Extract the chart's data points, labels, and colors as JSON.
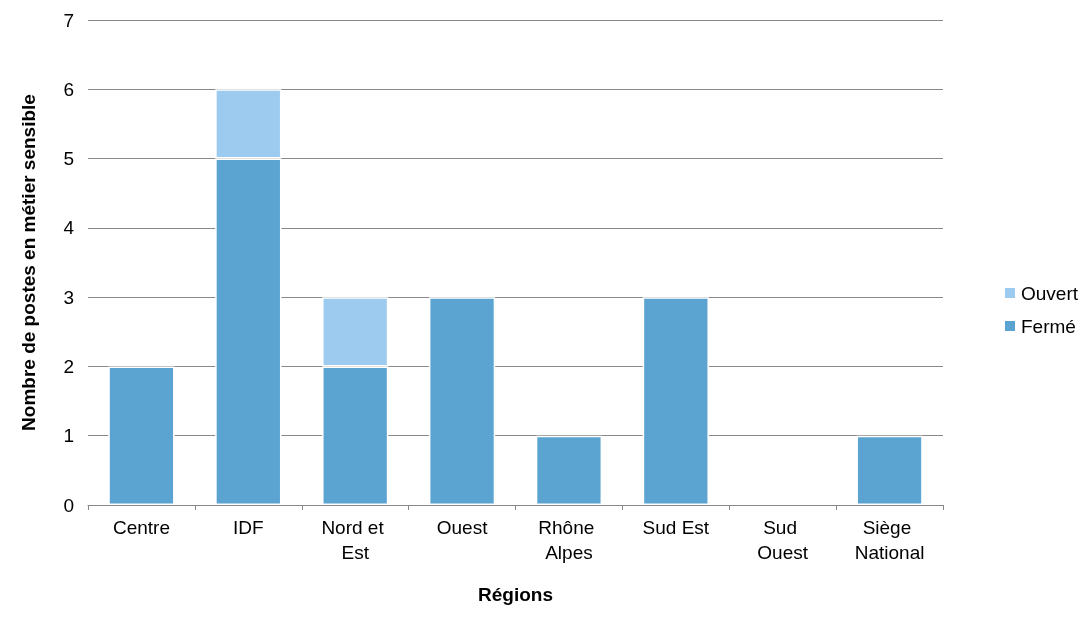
{
  "chart_data": {
    "type": "bar",
    "stacked": true,
    "xlabel": "Régions",
    "ylabel": "Nombre de postes en métier sensible",
    "categories": [
      "Centre",
      "IDF",
      "Nord et Est",
      "Ouest",
      "Rhône Alpes",
      "Sud Est",
      "Sud Ouest",
      "Siège National"
    ],
    "series": [
      {
        "name": "Fermé",
        "color": "#5ba3d0",
        "values": [
          2,
          5,
          2,
          3,
          1,
          3,
          0,
          1
        ]
      },
      {
        "name": "Ouvert",
        "color": "#9dcbef",
        "values": [
          0,
          1,
          1,
          0,
          0,
          0,
          0,
          0
        ]
      }
    ],
    "ylim": [
      0,
      7
    ],
    "yticks": [
      0,
      1,
      2,
      3,
      4,
      5,
      6,
      7
    ],
    "grid": "y",
    "legend": "right"
  }
}
